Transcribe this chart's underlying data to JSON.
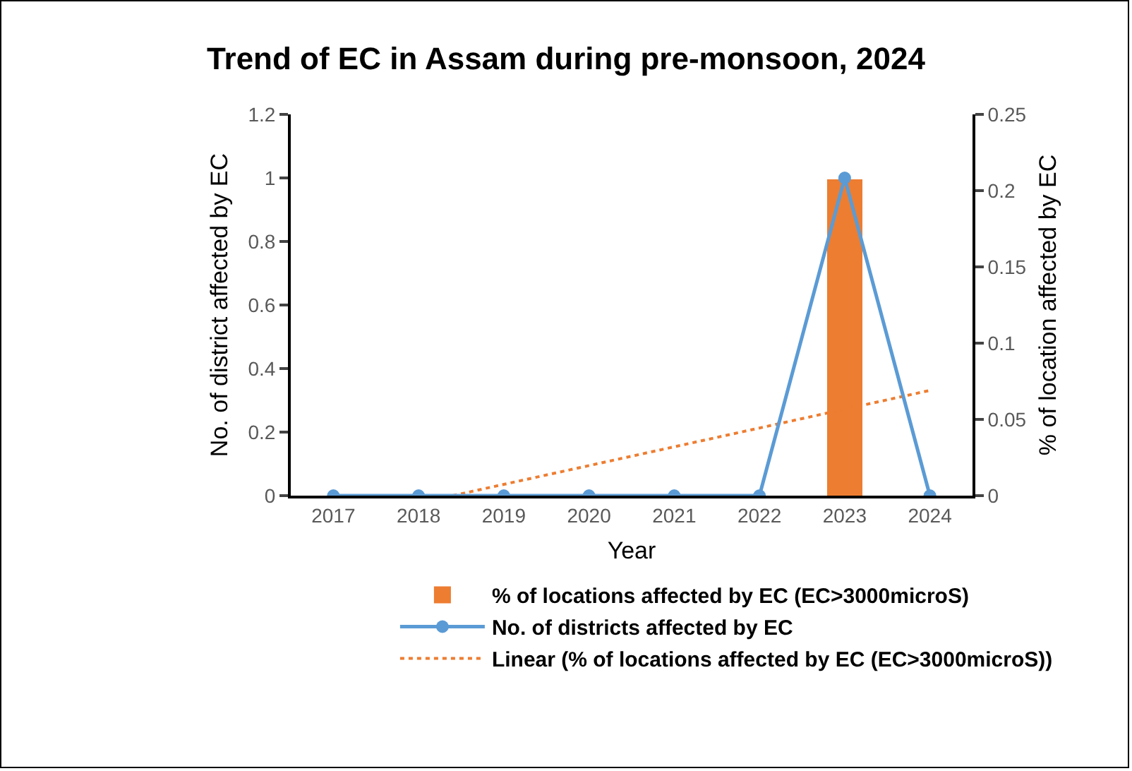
{
  "chart_data": {
    "type": "bar",
    "title": "Trend of EC in Assam during pre-monsoon, 2024",
    "xlabel": "Year",
    "ylabel": "No. of district affected by EC",
    "y2label": "% of location affected by EC",
    "x": [
      2017,
      2018,
      2019,
      2020,
      2021,
      2022,
      2023,
      2024
    ],
    "xlim": [
      2016.5,
      2024.5
    ],
    "xticks": [
      2017,
      2018,
      2019,
      2020,
      2021,
      2022,
      2023,
      2024
    ],
    "ylim": [
      0,
      1.2
    ],
    "yticks": [
      0,
      0.2,
      0.4,
      0.6,
      0.8,
      1,
      1.2
    ],
    "y2lim": [
      0,
      0.25
    ],
    "y2ticks": [
      0,
      0.05,
      0.1,
      0.15,
      0.2,
      0.25
    ],
    "grid": false,
    "legend": "bottom",
    "series": [
      {
        "name": "% of locations affected by EC (EC>3000microS)",
        "axis": "y2",
        "color": "#ed7d31",
        "values": [
          0,
          0,
          0,
          0,
          0,
          0,
          0.207,
          0
        ]
      },
      {
        "name": "No. of districts affected by EC",
        "type": "line",
        "axis": "y",
        "color": "#5b9bd5",
        "marker": "circle",
        "line_style": "solid",
        "values": [
          0,
          0,
          0,
          0,
          0,
          0,
          1,
          0
        ]
      },
      {
        "name": "Linear (% of locations affected by EC (EC>3000microS))",
        "type": "line",
        "axis": "y2",
        "color": "#ed7d31",
        "marker": "none",
        "line_style": "dotted",
        "x": [
          2018.4,
          2024
        ],
        "values": [
          0,
          0.069
        ]
      }
    ]
  }
}
